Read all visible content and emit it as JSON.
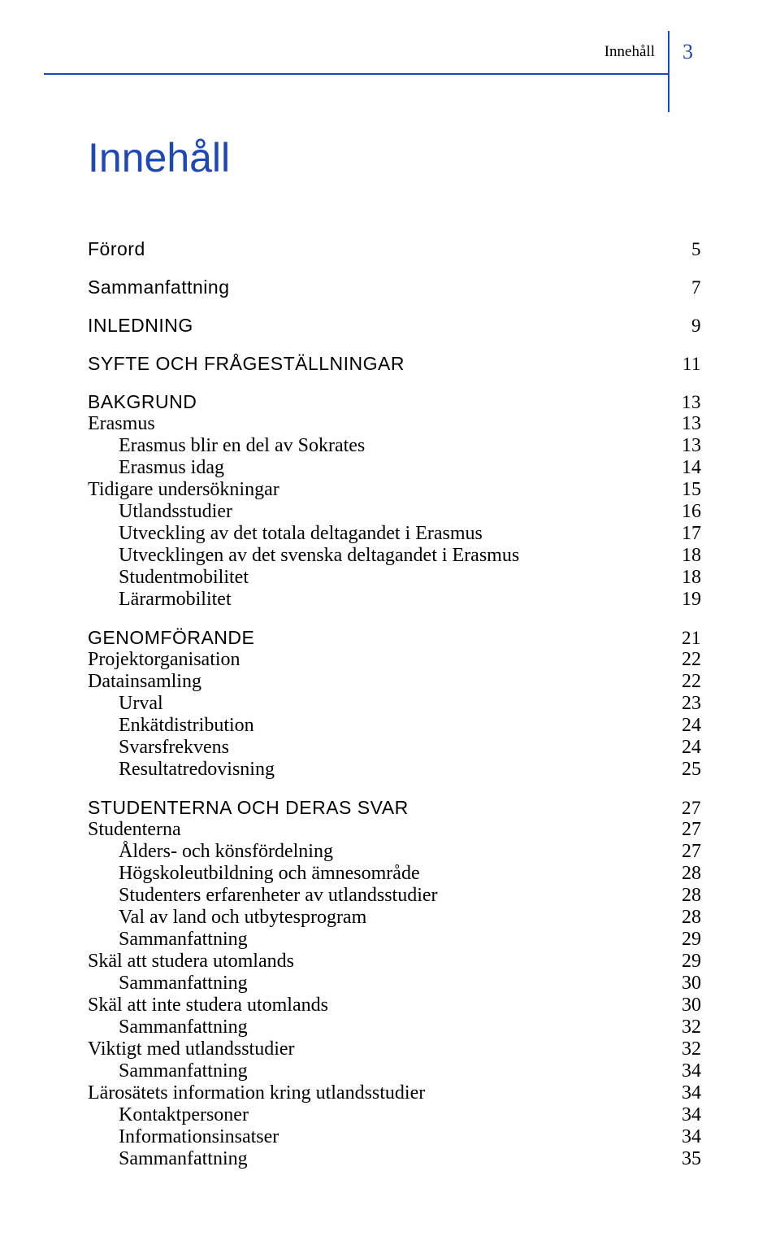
{
  "header": {
    "label": "Innehåll",
    "page_num": "3"
  },
  "title": "Innehåll",
  "colors": {
    "accent": "#1e47b8",
    "text": "#000000",
    "bg": "#ffffff"
  },
  "toc": [
    {
      "label": "Förord",
      "page": "5",
      "level": "section",
      "first": true
    },
    {
      "label": "Sammanfattning",
      "page": "7",
      "level": "section"
    },
    {
      "label": "INLEDNING",
      "page": "9",
      "level": "section"
    },
    {
      "label": "SYFTE OCH FRÅGESTÄLLNINGAR",
      "page": "11",
      "level": "section"
    },
    {
      "label": "BAKGRUND",
      "page": "13",
      "level": "section"
    },
    {
      "label": "Erasmus",
      "page": "13",
      "level": "sub"
    },
    {
      "label": "Erasmus blir en del av Sokrates",
      "page": "13",
      "level": "subsub"
    },
    {
      "label": "Erasmus idag",
      "page": "14",
      "level": "subsub"
    },
    {
      "label": "Tidigare undersökningar",
      "page": "15",
      "level": "sub"
    },
    {
      "label": "Utlandsstudier",
      "page": "16",
      "level": "subsub"
    },
    {
      "label": "Utveckling av det totala deltagandet i Erasmus",
      "page": "17",
      "level": "subsub"
    },
    {
      "label": "Utvecklingen av det svenska deltagandet i Erasmus",
      "page": "18",
      "level": "subsub"
    },
    {
      "label": "Studentmobilitet",
      "page": "18",
      "level": "subsub"
    },
    {
      "label": "Lärarmobilitet",
      "page": "19",
      "level": "subsub"
    },
    {
      "label": "GENOMFÖRANDE",
      "page": "21",
      "level": "section"
    },
    {
      "label": "Projektorganisation",
      "page": "22",
      "level": "sub"
    },
    {
      "label": "Datainsamling",
      "page": "22",
      "level": "sub"
    },
    {
      "label": "Urval",
      "page": "23",
      "level": "subsub"
    },
    {
      "label": "Enkätdistribution",
      "page": "24",
      "level": "subsub"
    },
    {
      "label": "Svarsfrekvens",
      "page": "24",
      "level": "subsub"
    },
    {
      "label": "Resultatredovisning",
      "page": "25",
      "level": "subsub"
    },
    {
      "label": "STUDENTERNA OCH DERAS SVAR",
      "page": "27",
      "level": "section"
    },
    {
      "label": "Studenterna",
      "page": "27",
      "level": "sub"
    },
    {
      "label": "Ålders- och könsfördelning",
      "page": "27",
      "level": "subsub"
    },
    {
      "label": "Högskoleutbildning och ämnesområde",
      "page": "28",
      "level": "subsub"
    },
    {
      "label": "Studenters erfarenheter av utlandsstudier",
      "page": "28",
      "level": "subsub"
    },
    {
      "label": "Val av land och utbytesprogram",
      "page": "28",
      "level": "subsub"
    },
    {
      "label": "Sammanfattning",
      "page": "29",
      "level": "subsub"
    },
    {
      "label": "Skäl att studera utomlands",
      "page": "29",
      "level": "sub"
    },
    {
      "label": "Sammanfattning",
      "page": "30",
      "level": "subsub"
    },
    {
      "label": "Skäl att inte studera utomlands",
      "page": "30",
      "level": "sub"
    },
    {
      "label": "Sammanfattning",
      "page": "32",
      "level": "subsub"
    },
    {
      "label": "Viktigt med utlandsstudier",
      "page": "32",
      "level": "sub"
    },
    {
      "label": "Sammanfattning",
      "page": "34",
      "level": "subsub"
    },
    {
      "label": "Lärosätets information kring utlandsstudier",
      "page": "34",
      "level": "sub"
    },
    {
      "label": "Kontaktpersoner",
      "page": "34",
      "level": "subsub"
    },
    {
      "label": "Informationsinsatser",
      "page": "34",
      "level": "subsub"
    },
    {
      "label": "Sammanfattning",
      "page": "35",
      "level": "subsub"
    }
  ]
}
